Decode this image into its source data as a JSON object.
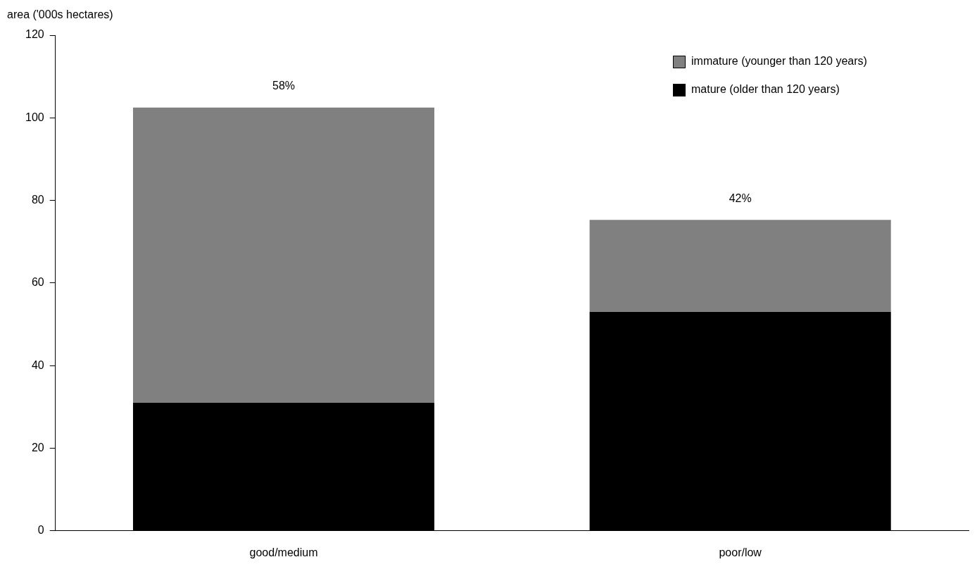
{
  "chart_data": {
    "type": "bar",
    "ylabel": "area ('000s hectares)",
    "categories": [
      "good/medium",
      "poor/low"
    ],
    "stacked": true,
    "series": [
      {
        "name": "mature (older than 120 years)",
        "color": "#000000",
        "values": [
          31,
          53
        ]
      },
      {
        "name": "immature (younger than 120 years)",
        "color": "#808080",
        "values": [
          71.5,
          22.3
        ]
      }
    ],
    "annotations": [
      {
        "text": "58%",
        "x": "good/medium",
        "y": 102.5
      },
      {
        "text": "42%",
        "x": "poor/low",
        "y": 75.3
      }
    ],
    "ylim": [
      0,
      120
    ],
    "yticks": [
      0,
      20,
      40,
      60,
      80,
      100,
      120
    ],
    "grid": false,
    "legend": "top right"
  }
}
